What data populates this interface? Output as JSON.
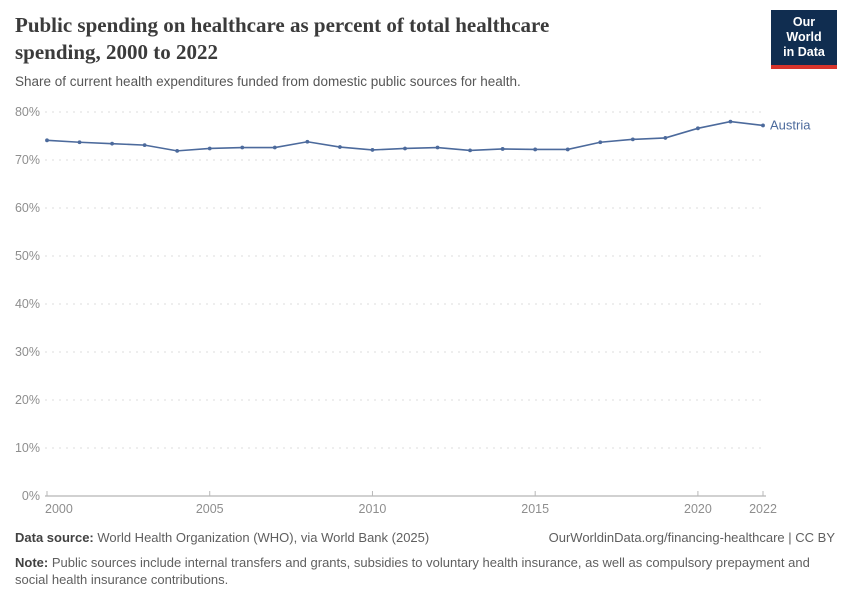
{
  "logo": {
    "line1": "Our World",
    "line2": "in Data",
    "bg_color": "#102d50",
    "accent_color": "#d7342c"
  },
  "chart_data": {
    "type": "line",
    "title": "Public spending on healthcare as percent of total healthcare spending, 2000 to 2022",
    "subtitle": "Share of current health expenditures funded from domestic public sources for health.",
    "xlim": [
      2000,
      2022
    ],
    "ylim": [
      0,
      80
    ],
    "x_ticks": [
      2000,
      2005,
      2010,
      2015,
      2020,
      2022
    ],
    "y_ticks": [
      0,
      10,
      20,
      30,
      40,
      50,
      60,
      70,
      80
    ],
    "y_suffix": "%",
    "grid": "horizontal-dashed",
    "legend_position": "end-of-line-label",
    "series": [
      {
        "name": "Austria",
        "color": "#4c6a9c",
        "x": [
          2000,
          2001,
          2002,
          2003,
          2004,
          2005,
          2006,
          2007,
          2008,
          2009,
          2010,
          2011,
          2012,
          2013,
          2014,
          2015,
          2016,
          2017,
          2018,
          2019,
          2020,
          2021,
          2022
        ],
        "values": [
          74.1,
          73.7,
          73.4,
          73.1,
          71.9,
          72.4,
          72.6,
          72.6,
          73.8,
          72.7,
          72.1,
          72.4,
          72.6,
          72.0,
          72.3,
          72.2,
          72.2,
          73.7,
          74.3,
          74.6,
          76.6,
          78.0,
          77.2
        ]
      }
    ]
  },
  "footer": {
    "datasource_label": "Data source:",
    "datasource_text": " World Health Organization (WHO), via World Bank (2025)",
    "link_text": "OurWorldinData.org/financing-healthcare | CC BY",
    "note_label": "Note:",
    "note_text": " Public sources include internal transfers and grants, subsidies to voluntary health insurance, as well as compulsory prepayment and social health insurance contributions."
  }
}
